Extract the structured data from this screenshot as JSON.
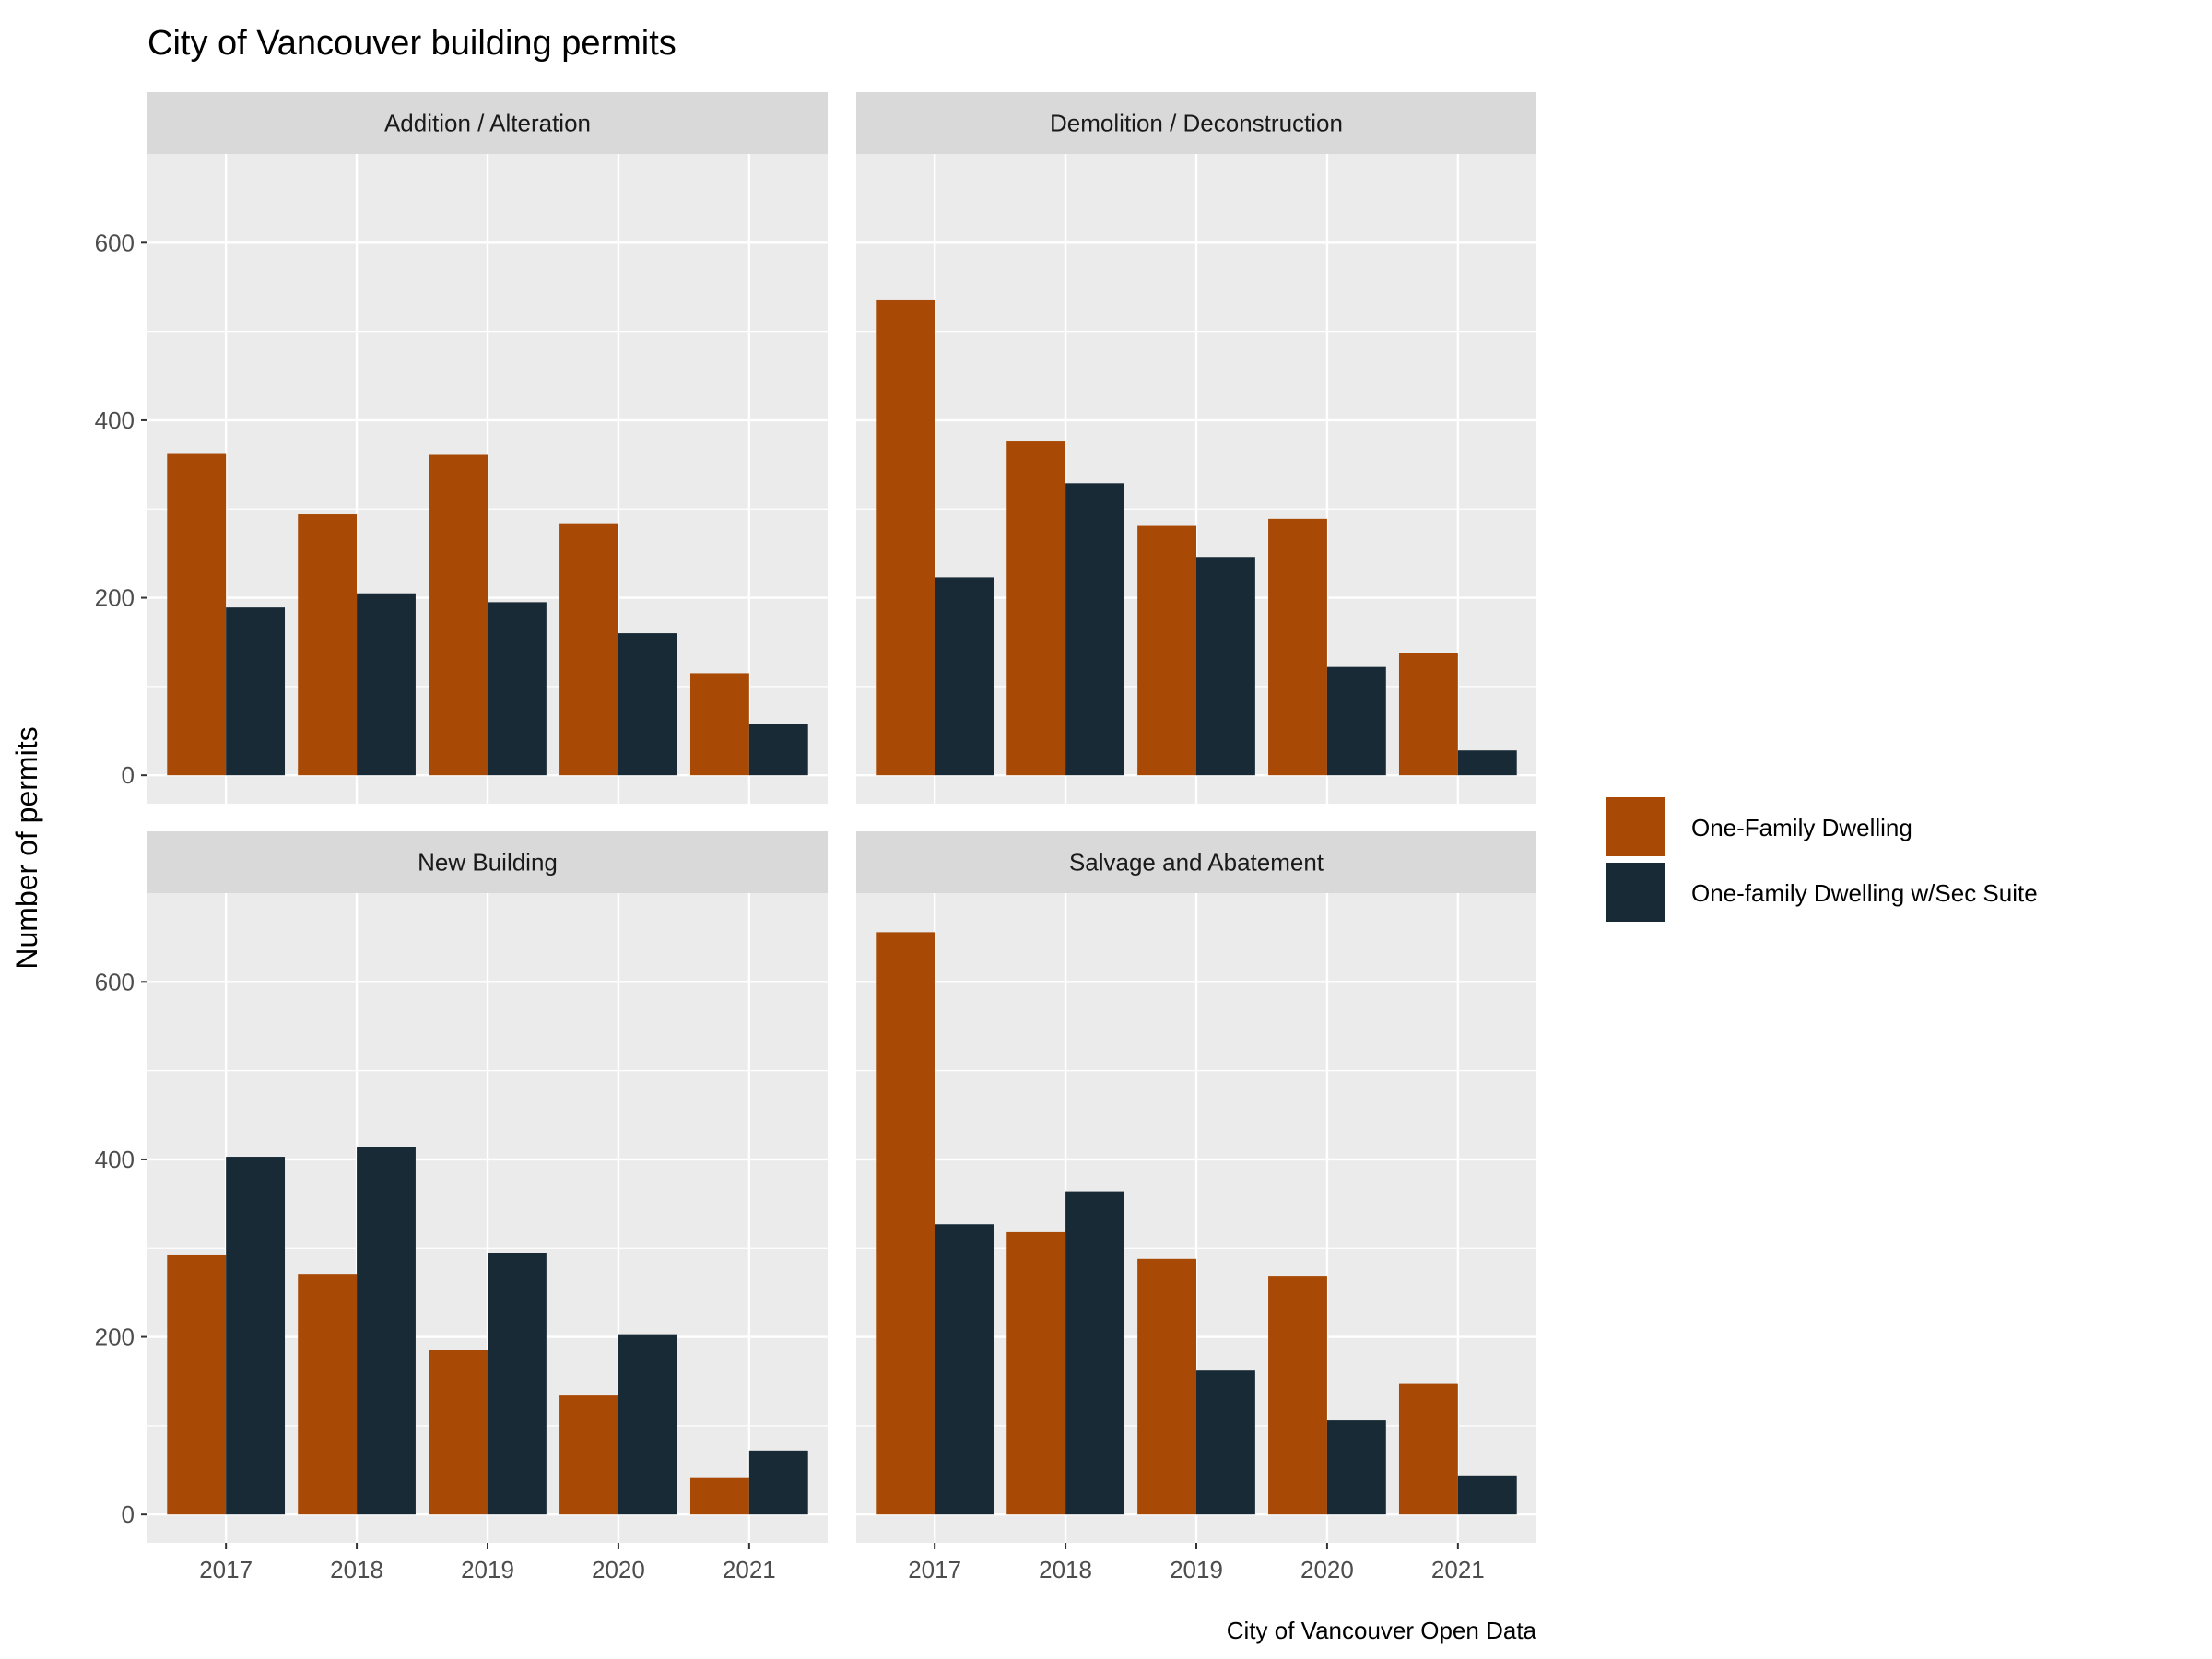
{
  "chart_data": {
    "type": "bar",
    "title": "City of Vancouver building permits",
    "xlabel": "",
    "ylabel": "Number of permits",
    "caption": "City of Vancouver Open Data",
    "ylim": [
      -32,
      700
    ],
    "yticks": [
      0,
      200,
      400,
      600
    ],
    "categories": [
      "2017",
      "2018",
      "2019",
      "2020",
      "2021"
    ],
    "grid": true,
    "legend_position": "right",
    "series_meta": [
      {
        "name": "One-Family Dwelling",
        "color": "#a84a06"
      },
      {
        "name": "One-family Dwelling w/Sec Suite",
        "color": "#172a36"
      }
    ],
    "panels": [
      {
        "label": "Addition / Alteration",
        "series": [
          {
            "name": "One-Family Dwelling",
            "values": [
              362,
              294,
              361,
              284,
              115
            ]
          },
          {
            "name": "One-family Dwelling w/Sec Suite",
            "values": [
              189,
              205,
              195,
              160,
              58
            ]
          }
        ]
      },
      {
        "label": "Demolition / Deconstruction",
        "series": [
          {
            "name": "One-Family Dwelling",
            "values": [
              536,
              376,
              281,
              289,
              138
            ]
          },
          {
            "name": "One-family Dwelling w/Sec Suite",
            "values": [
              223,
              329,
              246,
              122,
              28
            ]
          }
        ]
      },
      {
        "label": "New Building",
        "series": [
          {
            "name": "One-Family Dwelling",
            "values": [
              292,
              271,
              185,
              134,
              41
            ]
          },
          {
            "name": "One-family Dwelling w/Sec Suite",
            "values": [
              403,
              414,
              295,
              203,
              72
            ]
          }
        ]
      },
      {
        "label": "Salvage and Abatement",
        "series": [
          {
            "name": "One-Family Dwelling",
            "values": [
              656,
              318,
              288,
              269,
              147
            ]
          },
          {
            "name": "One-family Dwelling w/Sec Suite",
            "values": [
              327,
              364,
              163,
              106,
              44
            ]
          }
        ]
      }
    ]
  }
}
